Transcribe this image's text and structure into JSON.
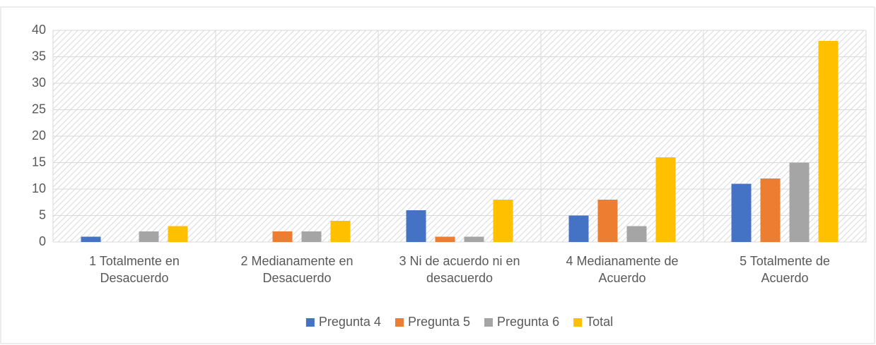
{
  "chart_data": {
    "type": "bar",
    "categories": [
      "1 Totalmente en\nDesacuerdo",
      "2 Medianamente en\nDesacuerdo",
      "3 Ni de acuerdo ni en\ndesacuerdo",
      "4 Medianamente de\nAcuerdo",
      "5 Totalmente de\nAcuerdo"
    ],
    "series": [
      {
        "name": "Pregunta 4",
        "color": "#4472c4",
        "values": [
          1,
          0,
          6,
          5,
          11
        ]
      },
      {
        "name": "Pregunta 5",
        "color": "#ed7d31",
        "values": [
          0,
          2,
          1,
          8,
          12
        ]
      },
      {
        "name": "Pregunta 6",
        "color": "#a5a5a5",
        "values": [
          2,
          2,
          1,
          3,
          15
        ]
      },
      {
        "name": "Total",
        "color": "#ffc000",
        "values": [
          3,
          4,
          8,
          16,
          38
        ]
      }
    ],
    "ylim": [
      0,
      40
    ],
    "yticks": [
      0,
      5,
      10,
      15,
      20,
      25,
      30,
      35,
      40
    ],
    "grid": true,
    "legend": "bottom"
  }
}
